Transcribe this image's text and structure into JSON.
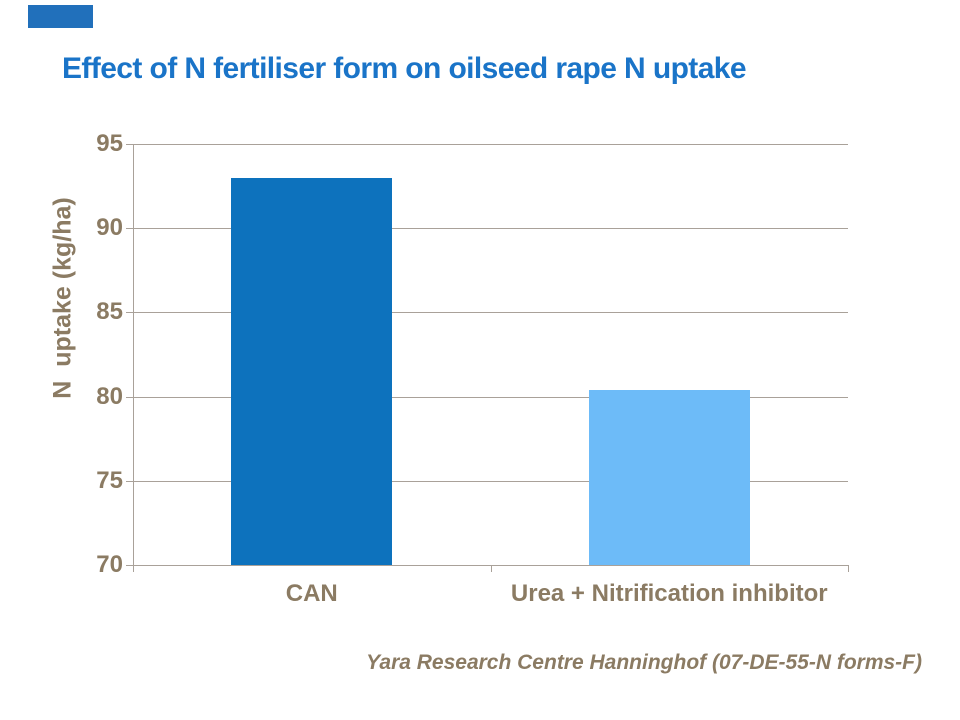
{
  "page": {
    "title": "Effect of N fertiliser form on oilseed rape N uptake",
    "footer": "Yara Research Centre Hanninghof (07-DE-55-N forms-F)"
  },
  "colors": {
    "title_blue": "#1a74c8",
    "brand_rect_blue": "#2170bb",
    "axis_text_brown": "#8b7b63",
    "gridline_gray": "#a9a199",
    "bar_dark_blue": "#0d72bd",
    "bar_light_blue": "#6dbbf8"
  },
  "chart_data": {
    "type": "bar",
    "title": "Effect of N fertiliser form on oilseed rape N uptake",
    "categories": [
      "CAN",
      "Urea + Nitrification inhibitor"
    ],
    "values": [
      93,
      80.4
    ],
    "xlabel": "",
    "ylabel": "N  uptake (kg/ha)",
    "ylim": [
      70,
      95
    ],
    "yticks": [
      95,
      90,
      85,
      80,
      75,
      70
    ],
    "grid": true,
    "legend": "none",
    "bar_colors": [
      "#0d72bd",
      "#6dbbf8"
    ]
  }
}
